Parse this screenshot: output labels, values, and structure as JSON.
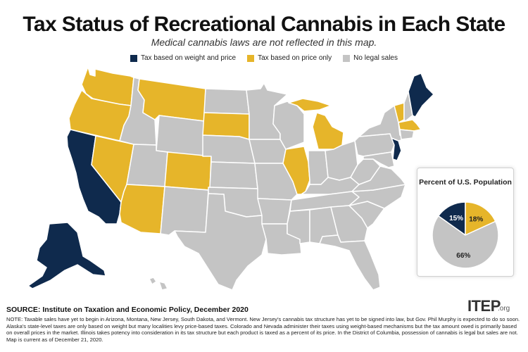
{
  "title": "Tax Status of Recreational Cannabis in Each State",
  "subtitle": "Medical cannabis laws are not reflected in this map.",
  "legend": [
    {
      "label": "Tax based on weight and price",
      "color": "#0f2a4d"
    },
    {
      "label": "Tax based on price only",
      "color": "#e6b52a"
    },
    {
      "label": "No legal sales",
      "color": "#c4c4c4"
    }
  ],
  "colors": {
    "weight": "#0f2a4d",
    "price": "#e6b52a",
    "none": "#c4c4c4"
  },
  "states": {
    "weight_and_price": [
      "California",
      "Alaska",
      "Maine",
      "New Jersey"
    ],
    "price_only": [
      "Washington",
      "Oregon",
      "Nevada",
      "Montana",
      "Arizona",
      "Colorado",
      "South Dakota",
      "Illinois",
      "Michigan",
      "Vermont",
      "Massachusetts"
    ]
  },
  "inset": {
    "title": "Percent of U.S. Population",
    "slices": [
      {
        "label": "15%",
        "value": 15,
        "color": "#0f2a4d"
      },
      {
        "label": "18%",
        "value": 18,
        "color": "#e6b52a"
      },
      {
        "label": "66%",
        "value": 66,
        "color": "#c4c4c4"
      }
    ]
  },
  "source": "SOURCE: Institute on Taxation and Economic Policy, December 2020",
  "logo": "ITEP",
  "logo_suffix": ".org",
  "note": "NOTE: Taxable sales have yet to begin in Arizona, Montana, New Jersey, South Dakota, and Vermont. New Jersey's cannabis tax structure has yet to be signed into law, but Gov. Phil Murphy is expected to do so soon. Alaska's state-level taxes are only based on weight but many localities levy price-based taxes. Colorado and Nevada administer their taxes using weight-based mechanisms but the tax amount owed is primarily based on overall prices in the market. Illinois takes potency into consideration in its tax structure but each product is taxed as a percent of its price. In the District of Columbia, possession of cannabis is legal but sales are not. Map is current as of December 21, 2020."
}
